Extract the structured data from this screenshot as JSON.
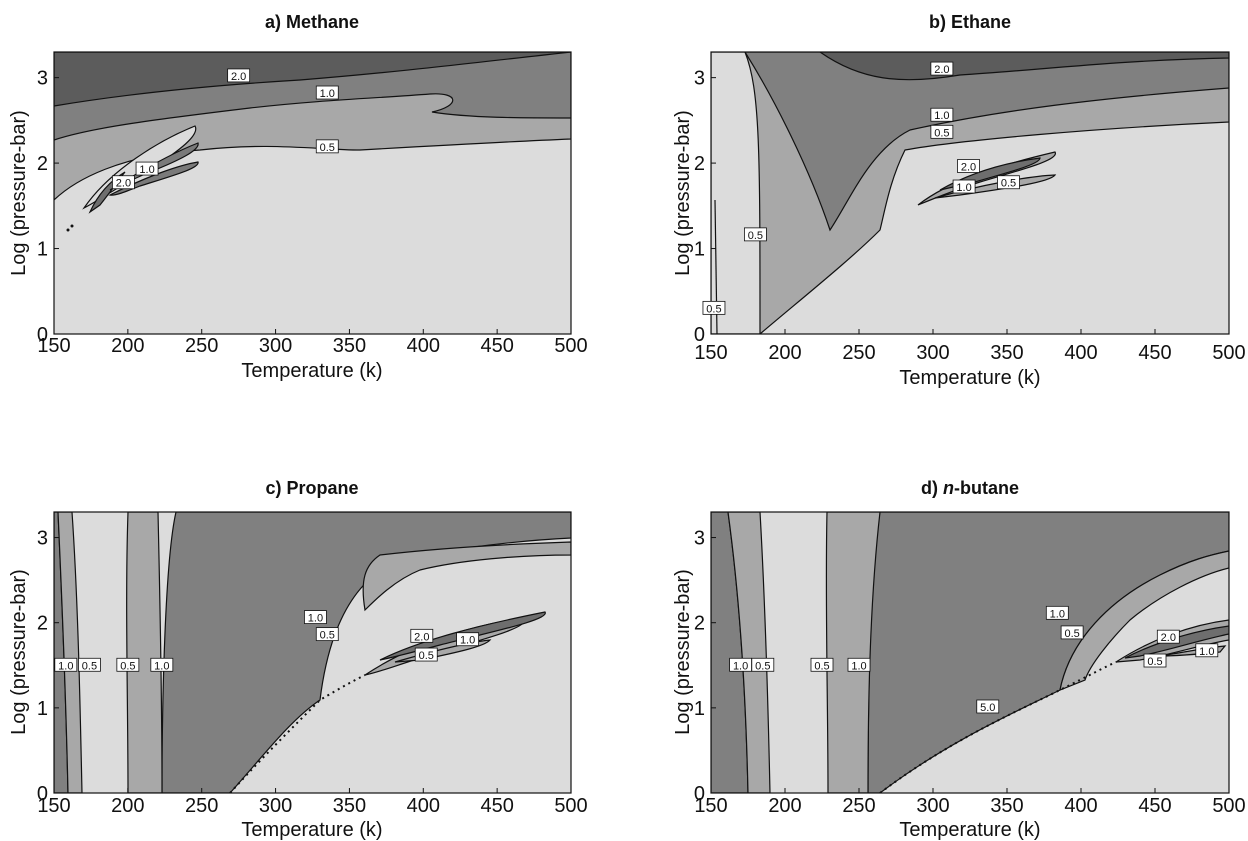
{
  "chart_data": [
    {
      "type": "contour",
      "title": "a) Methane",
      "xlabel": "Temperature (k)",
      "ylabel": "Log (pressure-bar)",
      "xlim": [
        150,
        500
      ],
      "ylim": [
        0,
        3.3
      ],
      "xticks": [
        "150",
        "200",
        "250",
        "300",
        "350",
        "400",
        "450",
        "500"
      ],
      "yticks": [
        "0",
        "1",
        "2",
        "3"
      ],
      "contour_levels": [
        "0.5",
        "1.0",
        "2.0"
      ],
      "contour_labels": [
        {
          "text": "2.0",
          "x": 275,
          "y": 3.02
        },
        {
          "text": "1.0",
          "x": 335,
          "y": 2.82
        },
        {
          "text": "0.5",
          "x": 335,
          "y": 2.19
        },
        {
          "text": "2.0",
          "x": 197,
          "y": 1.77
        },
        {
          "text": "1.0",
          "x": 213,
          "y": 1.93
        }
      ]
    },
    {
      "type": "contour",
      "title": "b) Ethane",
      "xlabel": "Temperature (k)",
      "ylabel": "Log (pressure-bar)",
      "xlim": [
        150,
        500
      ],
      "ylim": [
        0,
        3.3
      ],
      "xticks": [
        "150",
        "200",
        "250",
        "300",
        "350",
        "400",
        "450",
        "500"
      ],
      "yticks": [
        "0",
        "1",
        "2",
        "3"
      ],
      "contour_levels": [
        "0.5",
        "1.0",
        "2.0"
      ],
      "contour_labels": [
        {
          "text": "2.0",
          "x": 306,
          "y": 3.1
        },
        {
          "text": "1.0",
          "x": 306,
          "y": 2.56
        },
        {
          "text": "0.5",
          "x": 306,
          "y": 2.36
        },
        {
          "text": "2.0",
          "x": 324,
          "y": 1.96
        },
        {
          "text": "1.0",
          "x": 321,
          "y": 1.72
        },
        {
          "text": "0.5",
          "x": 351,
          "y": 1.77
        },
        {
          "text": "0.5",
          "x": 180,
          "y": 1.16
        },
        {
          "text": "0.5",
          "x": 152,
          "y": 0.3
        }
      ]
    },
    {
      "type": "contour",
      "title": "c) Propane",
      "xlabel": "Temperature (k)",
      "ylabel": "Log (pressure-bar)",
      "xlim": [
        150,
        500
      ],
      "ylim": [
        0,
        3.3
      ],
      "xticks": [
        "150",
        "200",
        "250",
        "300",
        "350",
        "400",
        "450",
        "500"
      ],
      "yticks": [
        "0",
        "1",
        "2",
        "3"
      ],
      "contour_levels": [
        "0.5",
        "1.0",
        "2.0"
      ],
      "contour_labels": [
        {
          "text": "1.0",
          "x": 158,
          "y": 1.5
        },
        {
          "text": "0.5",
          "x": 174,
          "y": 1.5
        },
        {
          "text": "0.5",
          "x": 200,
          "y": 1.5
        },
        {
          "text": "1.0",
          "x": 223,
          "y": 1.5
        },
        {
          "text": "1.0",
          "x": 327,
          "y": 2.06
        },
        {
          "text": "0.5",
          "x": 335,
          "y": 1.86
        },
        {
          "text": "2.0",
          "x": 399,
          "y": 1.84
        },
        {
          "text": "1.0",
          "x": 430,
          "y": 1.8
        },
        {
          "text": "0.5",
          "x": 402,
          "y": 1.62
        }
      ]
    },
    {
      "type": "contour",
      "title": "d) n-butane",
      "title_prefix": "d) ",
      "title_italic": "n",
      "title_suffix": "-butane",
      "xlabel": "Temperature (k)",
      "ylabel": "Log (pressure-bar)",
      "xlim": [
        150,
        500
      ],
      "ylim": [
        0,
        3.3
      ],
      "xticks": [
        "150",
        "200",
        "250",
        "300",
        "350",
        "400",
        "450",
        "500"
      ],
      "yticks": [
        "0",
        "1",
        "2",
        "3"
      ],
      "contour_levels": [
        "0.5",
        "1.0",
        "2.0",
        "5.0"
      ],
      "contour_labels": [
        {
          "text": "1.0",
          "x": 170,
          "y": 1.5
        },
        {
          "text": "0.5",
          "x": 185,
          "y": 1.5
        },
        {
          "text": "0.5",
          "x": 225,
          "y": 1.5
        },
        {
          "text": "1.0",
          "x": 250,
          "y": 1.5
        },
        {
          "text": "1.0",
          "x": 384,
          "y": 2.11
        },
        {
          "text": "0.5",
          "x": 394,
          "y": 1.88
        },
        {
          "text": "2.0",
          "x": 459,
          "y": 1.83
        },
        {
          "text": "1.0",
          "x": 485,
          "y": 1.67
        },
        {
          "text": "0.5",
          "x": 450,
          "y": 1.55
        },
        {
          "text": "5.0",
          "x": 337,
          "y": 1.01
        }
      ]
    }
  ]
}
